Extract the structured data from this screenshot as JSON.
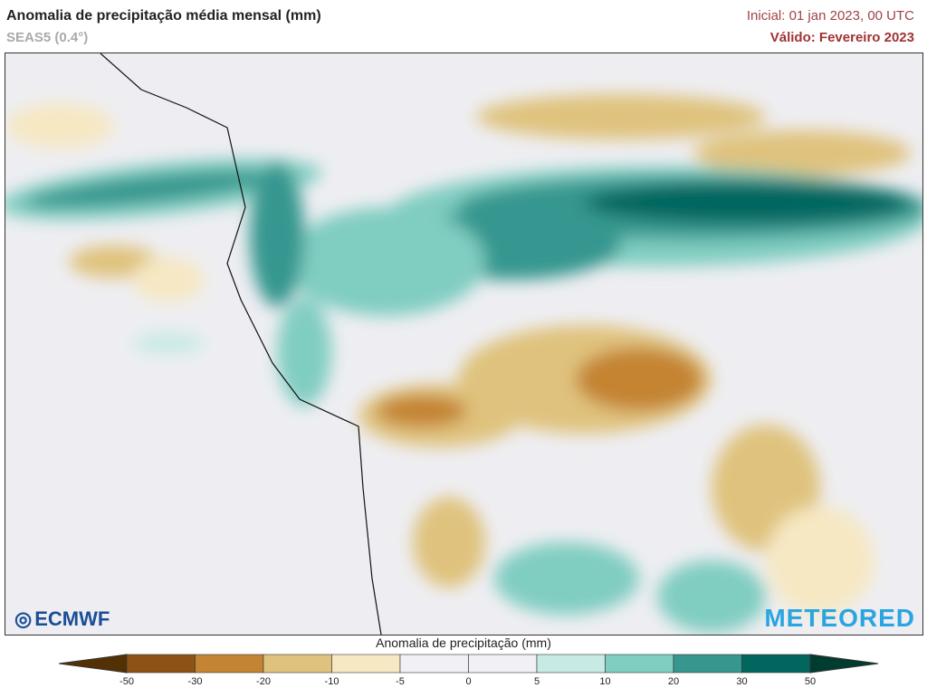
{
  "header": {
    "title": "Anomalia de precipitação média mensal (mm)",
    "model": "SEAS5 (0.4°)",
    "initial": "Inicial: 01 jan 2023, 00 UTC",
    "valid": "Válido: Fevereiro 2023"
  },
  "logos": {
    "left": "ECMWF",
    "right": "METEORED"
  },
  "colorbar": {
    "title": "Anomalia de precipitação (mm)",
    "ticks": [
      "-50",
      "-30",
      "-20",
      "-10",
      "-5",
      "0",
      "5",
      "10",
      "20",
      "30",
      "50"
    ],
    "colors": [
      "#8c5314",
      "#c48433",
      "#dfc27d",
      "#f6e8c3",
      "#f0f0f5",
      "#f0f0f5",
      "#c7eae5",
      "#80cdc1",
      "#35978f",
      "#01665e"
    ],
    "under_color": "#543005",
    "over_color": "#003c30"
  }
}
